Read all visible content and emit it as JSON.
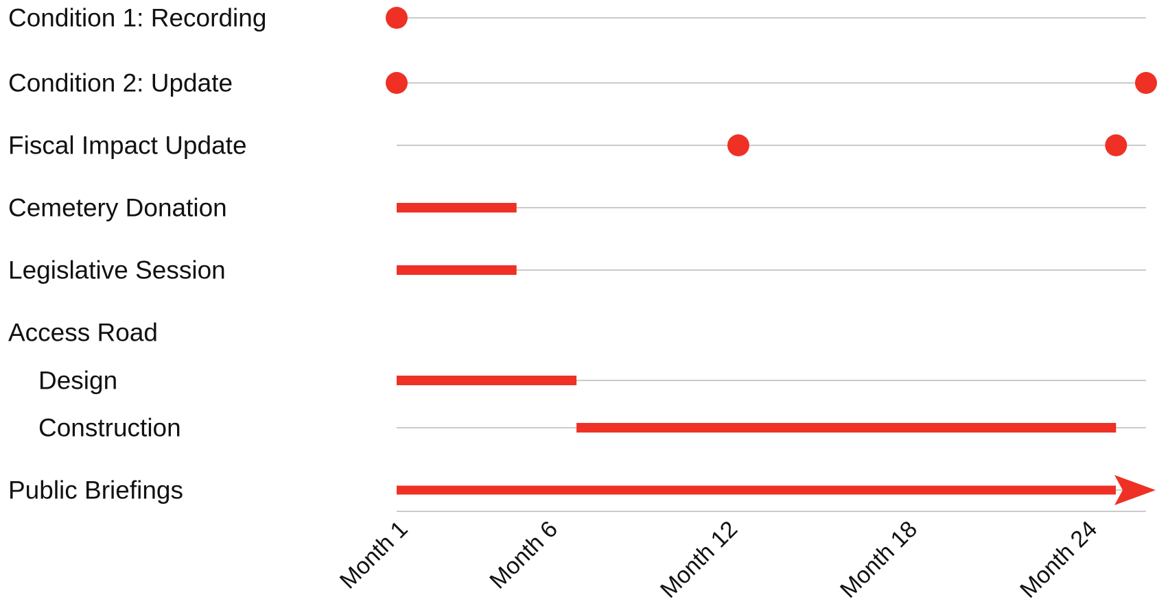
{
  "chart_data": {
    "type": "timeline",
    "title": "",
    "xlabel": "",
    "ylabel": "",
    "xlim": [
      1,
      26
    ],
    "x_unit": "month",
    "grid": "horizontal row lines",
    "legend": "none",
    "colors": {
      "marker": "#ee3124",
      "row_line": "#b9b9b9",
      "text": "#111111"
    },
    "ticks": [
      {
        "value": 1,
        "label": "Month 1"
      },
      {
        "value": 6,
        "label": "Month 6"
      },
      {
        "value": 12,
        "label": "Month 12"
      },
      {
        "value": 18,
        "label": "Month 18"
      },
      {
        "value": 24,
        "label": "Month 24"
      }
    ],
    "rows": [
      {
        "label": "Condition 1: Recording",
        "indent": false,
        "events": [
          {
            "kind": "point",
            "x": 1
          }
        ]
      },
      {
        "label": "Condition 2: Update",
        "indent": false,
        "events": [
          {
            "kind": "point",
            "x": 1
          },
          {
            "kind": "point",
            "x": 26
          }
        ]
      },
      {
        "label": "Fiscal Impact Update",
        "indent": false,
        "events": [
          {
            "kind": "point",
            "x": 12.4
          },
          {
            "kind": "point",
            "x": 25
          }
        ]
      },
      {
        "label": "Cemetery Donation",
        "indent": false,
        "events": [
          {
            "kind": "bar",
            "start": 1,
            "end": 5
          }
        ]
      },
      {
        "label": "Legislative Session",
        "indent": false,
        "events": [
          {
            "kind": "bar",
            "start": 1,
            "end": 5
          }
        ]
      },
      {
        "label": "Access Road",
        "indent": false,
        "events": []
      },
      {
        "label": "Design",
        "indent": true,
        "events": [
          {
            "kind": "bar",
            "start": 1,
            "end": 7
          }
        ]
      },
      {
        "label": "Construction",
        "indent": true,
        "events": [
          {
            "kind": "bar",
            "start": 7,
            "end": 25
          }
        ]
      },
      {
        "label": "Public Briefings",
        "indent": false,
        "events": [
          {
            "kind": "arrow",
            "start": 1,
            "end": 26
          }
        ]
      }
    ]
  }
}
